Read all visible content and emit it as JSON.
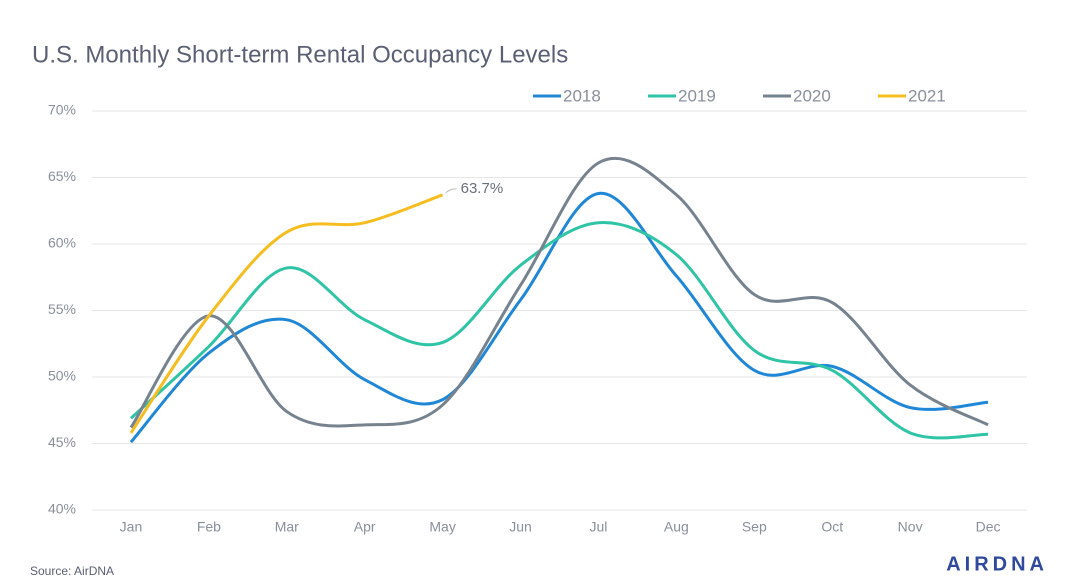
{
  "chart_data": {
    "type": "line",
    "title": "U.S. Monthly Short-term Rental Occupancy Levels",
    "categories": [
      "Jan",
      "Feb",
      "Mar",
      "Apr",
      "May",
      "Jun",
      "Jul",
      "Aug",
      "Sep",
      "Oct",
      "Nov",
      "Dec"
    ],
    "series": [
      {
        "name": "2018",
        "color": "#1f87d6",
        "values": [
          45.1,
          51.8,
          54.3,
          49.8,
          48.3,
          55.8,
          63.8,
          57.6,
          50.5,
          50.8,
          47.7,
          48.1
        ]
      },
      {
        "name": "2019",
        "color": "#2ec4a5",
        "values": [
          46.9,
          52.3,
          58.2,
          54.3,
          52.6,
          58.4,
          61.6,
          59.2,
          52.0,
          50.5,
          45.8,
          45.7
        ]
      },
      {
        "name": "2020",
        "color": "#76838f",
        "values": [
          46.2,
          54.6,
          47.4,
          46.4,
          47.9,
          56.9,
          66.1,
          63.7,
          56.2,
          55.6,
          49.4,
          46.4
        ]
      },
      {
        "name": "2021",
        "color": "#f5bd1f",
        "values": [
          45.8,
          54.6,
          60.9,
          61.6,
          63.7,
          null,
          null,
          null,
          null,
          null,
          null,
          null
        ],
        "value_labels": [
          null,
          null,
          null,
          null,
          "63.7%",
          null,
          null,
          null,
          null,
          null,
          null,
          null
        ]
      }
    ],
    "ylim": [
      40,
      70
    ],
    "yticks": [
      {
        "value": 40,
        "label": "40%"
      },
      {
        "value": 45,
        "label": "45%"
      },
      {
        "value": 50,
        "label": "50%"
      },
      {
        "value": 55,
        "label": "55%"
      },
      {
        "value": 60,
        "label": "60%"
      },
      {
        "value": 65,
        "label": "65%"
      },
      {
        "value": 70,
        "label": "70%"
      }
    ],
    "grid": true,
    "legend": "top",
    "source": "Source: AirDNA",
    "logo": "AIRDNA"
  }
}
